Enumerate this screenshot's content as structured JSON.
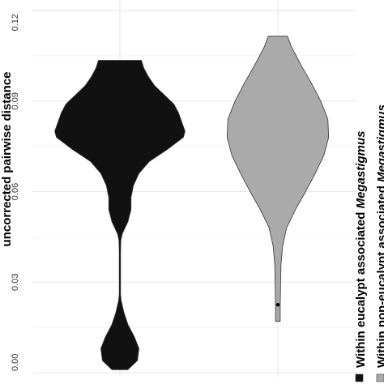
{
  "chart_data": {
    "type": "violin",
    "title": "",
    "ylabel": "uncorrected pairwise distance",
    "ylim": [
      0,
      0.12
    ],
    "yticks": [
      "0.00",
      "0.03",
      "0.06",
      "0.09",
      "0.12"
    ],
    "grid": true,
    "legend_position": "right",
    "series": [
      {
        "name_prefix": "Within eucalypt associated ",
        "name_italic": "Megastigmus",
        "color": "#111111",
        "median": null,
        "profile": [
          {
            "y": 0.001,
            "w": 0.1
          },
          {
            "y": 0.004,
            "w": 0.22
          },
          {
            "y": 0.008,
            "w": 0.24
          },
          {
            "y": 0.012,
            "w": 0.18
          },
          {
            "y": 0.016,
            "w": 0.1
          },
          {
            "y": 0.02,
            "w": 0.05
          },
          {
            "y": 0.024,
            "w": 0.015
          },
          {
            "y": 0.026,
            "w": 0.008
          },
          {
            "y": 0.04,
            "w": 0.008
          },
          {
            "y": 0.044,
            "w": 0.012
          },
          {
            "y": 0.046,
            "w": 0.03
          },
          {
            "y": 0.05,
            "w": 0.1
          },
          {
            "y": 0.054,
            "w": 0.14
          },
          {
            "y": 0.058,
            "w": 0.14
          },
          {
            "y": 0.062,
            "w": 0.17
          },
          {
            "y": 0.066,
            "w": 0.24
          },
          {
            "y": 0.07,
            "w": 0.37
          },
          {
            "y": 0.074,
            "w": 0.6
          },
          {
            "y": 0.078,
            "w": 0.8
          },
          {
            "y": 0.08,
            "w": 0.82
          },
          {
            "y": 0.083,
            "w": 0.78
          },
          {
            "y": 0.086,
            "w": 0.74
          },
          {
            "y": 0.089,
            "w": 0.68
          },
          {
            "y": 0.092,
            "w": 0.56
          },
          {
            "y": 0.095,
            "w": 0.44
          },
          {
            "y": 0.098,
            "w": 0.36
          },
          {
            "y": 0.101,
            "w": 0.3
          },
          {
            "y": 0.1035,
            "w": 0.27
          }
        ]
      },
      {
        "name_prefix": "Within non-eucalypt associated ",
        "name_italic": "Megastigmus",
        "color": "#aaaaaa",
        "median": 0.0225,
        "profile": [
          {
            "y": 0.017,
            "w": 0.03
          },
          {
            "y": 0.022,
            "w": 0.03
          },
          {
            "y": 0.03,
            "w": 0.035
          },
          {
            "y": 0.036,
            "w": 0.04
          },
          {
            "y": 0.042,
            "w": 0.06
          },
          {
            "y": 0.048,
            "w": 0.11
          },
          {
            "y": 0.054,
            "w": 0.22
          },
          {
            "y": 0.06,
            "w": 0.35
          },
          {
            "y": 0.066,
            "w": 0.47
          },
          {
            "y": 0.072,
            "w": 0.58
          },
          {
            "y": 0.078,
            "w": 0.64
          },
          {
            "y": 0.084,
            "w": 0.63
          },
          {
            "y": 0.09,
            "w": 0.54
          },
          {
            "y": 0.096,
            "w": 0.42
          },
          {
            "y": 0.102,
            "w": 0.29
          },
          {
            "y": 0.108,
            "w": 0.17
          },
          {
            "y": 0.1115,
            "w": 0.12
          }
        ]
      }
    ]
  }
}
